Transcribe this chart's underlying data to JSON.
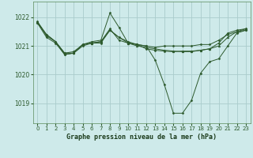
{
  "xlabel": "Graphe pression niveau de la mer (hPa)",
  "background_color": "#ceeaea",
  "grid_color": "#aacccc",
  "line_color": "#2d5a2d",
  "ylim": [
    1018.3,
    1022.55
  ],
  "xlim": [
    -0.5,
    23.5
  ],
  "xticks": [
    0,
    1,
    2,
    3,
    4,
    5,
    6,
    7,
    8,
    9,
    10,
    11,
    12,
    13,
    14,
    15,
    16,
    17,
    18,
    19,
    20,
    21,
    22,
    23
  ],
  "yticks": [
    1019,
    1020,
    1021,
    1022
  ],
  "series": [
    [
      1021.8,
      1021.3,
      1021.1,
      1020.7,
      1020.75,
      1021.05,
      1021.1,
      1021.1,
      1021.55,
      1021.3,
      1021.15,
      1021.05,
      1021.0,
      1020.95,
      1021.0,
      1021.0,
      1021.0,
      1021.0,
      1021.05,
      1021.05,
      1021.2,
      1021.4,
      1021.5,
      1021.55
    ],
    [
      1021.8,
      1021.4,
      1021.15,
      1020.75,
      1020.8,
      1021.05,
      1021.15,
      1021.2,
      1022.15,
      1021.65,
      1021.1,
      1021.05,
      1020.9,
      1020.85,
      1020.82,
      1020.8,
      1020.82,
      1020.82,
      1020.85,
      1020.9,
      1021.1,
      1021.45,
      1021.55,
      1021.6
    ],
    [
      1021.85,
      1021.35,
      1021.15,
      1020.7,
      1020.75,
      1021.0,
      1021.1,
      1021.15,
      1021.6,
      1021.2,
      1021.1,
      1021.05,
      1021.0,
      1020.5,
      1019.65,
      1018.65,
      1018.65,
      1019.1,
      1020.05,
      1020.45,
      1020.55,
      1021.0,
      1021.45,
      1021.55
    ],
    [
      1021.85,
      1021.4,
      1021.15,
      1020.75,
      1020.75,
      1021.05,
      1021.1,
      1021.15,
      1021.55,
      1021.3,
      1021.1,
      1021.0,
      1020.95,
      1020.9,
      1020.85,
      1020.82,
      1020.8,
      1020.8,
      1020.85,
      1020.9,
      1021.0,
      1021.3,
      1021.5,
      1021.6
    ]
  ],
  "marker_styles": [
    "D",
    "D",
    "D",
    "^"
  ],
  "marker_sizes": [
    1.5,
    1.5,
    1.5,
    2.0
  ],
  "linewidths": [
    0.7,
    0.7,
    0.7,
    0.7
  ]
}
